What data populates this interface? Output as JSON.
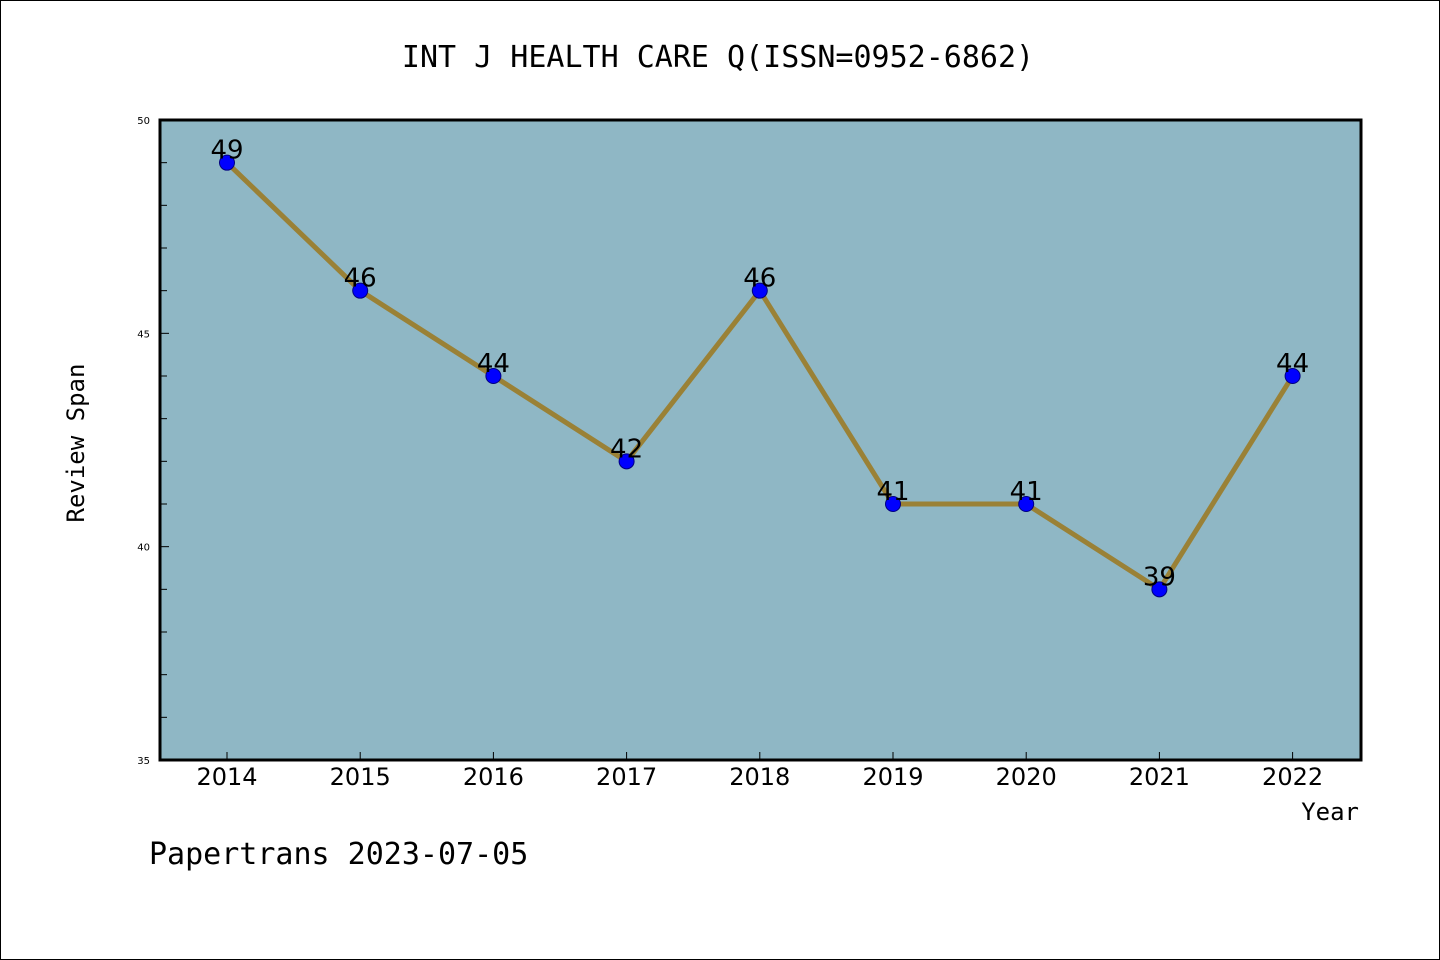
{
  "colors": {
    "plot_background": "#8fb7c5",
    "line": "#9a8136",
    "marker": "#0000ff",
    "marker_edge": "#000080"
  },
  "chart_data": {
    "type": "line",
    "title": "INT J HEALTH CARE Q(ISSN=0952-6862)",
    "xlabel": "Year",
    "ylabel": "Review Span",
    "categories": [
      "2014",
      "2015",
      "2016",
      "2017",
      "2018",
      "2019",
      "2020",
      "2021",
      "2022"
    ],
    "series": [
      {
        "values": [
          49,
          46,
          44,
          42,
          46,
          41,
          41,
          39,
          44
        ]
      }
    ],
    "data_labels": [
      "49",
      "46",
      "44",
      "42",
      "46",
      "41",
      "41",
      "39",
      "44"
    ],
    "ylim": [
      35,
      50
    ],
    "yticks_major": [
      "35",
      "40",
      "45",
      "50"
    ],
    "ytick_minor_step": 1,
    "grid": false,
    "legend": "none"
  },
  "footer": {
    "text": "Papertrans 2023-07-05"
  }
}
